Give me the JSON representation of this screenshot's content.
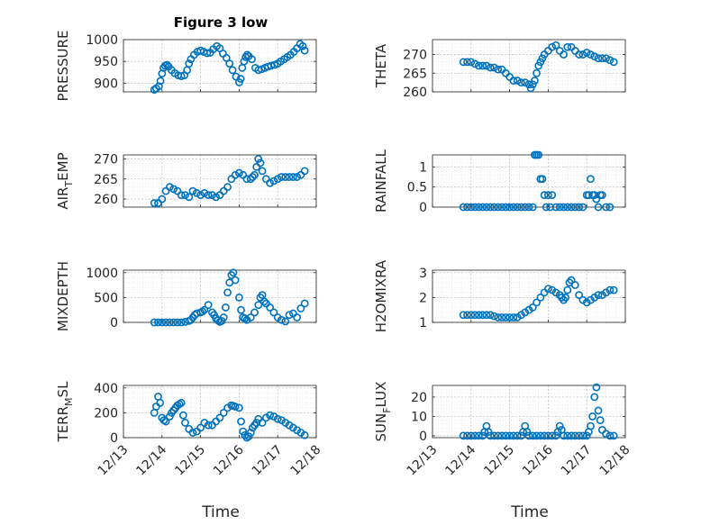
{
  "figure": {
    "title": "Figure 3 low",
    "xlabel": "Time",
    "x_ticks": [
      "12/13",
      "12/14",
      "12/15",
      "12/16",
      "12/17",
      "12/18"
    ]
  },
  "chart_data": [
    {
      "type": "scatter",
      "ylabel": "PRESSURE",
      "ylabel_sub": "",
      "ylim": [
        880,
        1000
      ],
      "yticks": [
        900,
        950,
        1000
      ],
      "marker_color": "#0072BD",
      "x": [
        13.8,
        13.85,
        13.92,
        13.96,
        14.0,
        14.04,
        14.08,
        14.13,
        14.17,
        14.25,
        14.33,
        14.42,
        14.5,
        14.58,
        14.65,
        14.7,
        14.75,
        14.83,
        14.92,
        15.0,
        15.08,
        15.17,
        15.25,
        15.33,
        15.42,
        15.5,
        15.58,
        15.67,
        15.75,
        15.83,
        15.92,
        16.0,
        16.04,
        16.08,
        16.13,
        16.17,
        16.21,
        16.25,
        16.33,
        16.42,
        16.5,
        16.58,
        16.67,
        16.75,
        16.83,
        16.92,
        17.0,
        17.08,
        17.17,
        17.25,
        17.33,
        17.42,
        17.5,
        17.58,
        17.65,
        17.7
      ],
      "y": [
        885,
        888,
        893,
        905,
        922,
        935,
        940,
        942,
        938,
        930,
        923,
        918,
        916,
        918,
        930,
        945,
        955,
        965,
        972,
        975,
        972,
        969,
        970,
        978,
        985,
        980,
        968,
        958,
        945,
        930,
        915,
        902,
        910,
        935,
        950,
        960,
        965,
        962,
        955,
        935,
        930,
        932,
        935,
        938,
        940,
        942,
        945,
        950,
        955,
        960,
        965,
        972,
        980,
        990,
        985,
        975
      ]
    },
    {
      "type": "scatter",
      "ylabel": "THETA",
      "ylabel_sub": "",
      "ylim": [
        260,
        274
      ],
      "yticks": [
        260,
        265,
        270
      ],
      "marker_color": "#0072BD",
      "x": [
        13.8,
        13.9,
        14.0,
        14.1,
        14.2,
        14.3,
        14.4,
        14.5,
        14.6,
        14.7,
        14.8,
        14.9,
        15.0,
        15.1,
        15.2,
        15.3,
        15.4,
        15.5,
        15.55,
        15.6,
        15.65,
        15.7,
        15.75,
        15.8,
        15.85,
        15.9,
        16.0,
        16.1,
        16.2,
        16.3,
        16.4,
        16.5,
        16.6,
        16.7,
        16.8,
        16.9,
        17.0,
        17.1,
        17.2,
        17.3,
        17.4,
        17.5,
        17.6,
        17.7
      ],
      "y": [
        268,
        268,
        268,
        267.5,
        267,
        267,
        267,
        266.5,
        266.5,
        266,
        266,
        265,
        264,
        263,
        263,
        262.5,
        262.5,
        262,
        261,
        262,
        263,
        265,
        267,
        268,
        269,
        270,
        271,
        272,
        272.5,
        271,
        270,
        272,
        272,
        271,
        270,
        270,
        270.5,
        270,
        269.5,
        269,
        269,
        269,
        268.5,
        268
      ]
    },
    {
      "type": "scatter",
      "ylabel": "AIR",
      "ylabel_sub": "T",
      "ylabel_suffix": "EMP",
      "ylim": [
        258,
        271
      ],
      "yticks": [
        260,
        265,
        270
      ],
      "marker_color": "#0072BD",
      "x": [
        13.8,
        13.9,
        14.0,
        14.1,
        14.2,
        14.3,
        14.4,
        14.5,
        14.6,
        14.7,
        14.8,
        14.9,
        15.0,
        15.1,
        15.2,
        15.3,
        15.4,
        15.5,
        15.6,
        15.7,
        15.8,
        15.9,
        16.0,
        16.1,
        16.2,
        16.3,
        16.35,
        16.4,
        16.45,
        16.5,
        16.55,
        16.6,
        16.7,
        16.8,
        16.9,
        17.0,
        17.1,
        17.2,
        17.3,
        17.4,
        17.5,
        17.6,
        17.7
      ],
      "y": [
        259,
        259,
        260,
        262,
        263,
        262.5,
        262,
        261,
        261,
        260.5,
        262,
        261.5,
        261,
        261.5,
        261,
        261,
        260.5,
        261,
        262,
        263,
        265,
        266,
        266.5,
        266,
        265,
        265,
        265.5,
        266,
        268,
        270,
        269,
        267,
        265,
        264,
        264.5,
        265,
        265.5,
        265.5,
        265.5,
        265.5,
        265.5,
        266,
        267
      ]
    },
    {
      "type": "scatter",
      "ylabel": "RAINFALL",
      "ylabel_sub": "",
      "ylim": [
        0,
        1.3
      ],
      "yticks": [
        0,
        0.5,
        1
      ],
      "marker_color": "#0072BD",
      "x": [
        13.8,
        13.9,
        14.0,
        14.1,
        14.2,
        14.3,
        14.4,
        14.5,
        14.6,
        14.7,
        14.8,
        14.9,
        15.0,
        15.1,
        15.2,
        15.3,
        15.4,
        15.5,
        15.6,
        15.65,
        15.7,
        15.75,
        15.8,
        15.85,
        15.9,
        15.95,
        16.0,
        16.05,
        16.1,
        16.2,
        16.3,
        16.4,
        16.5,
        16.6,
        16.7,
        16.8,
        16.9,
        17.0,
        17.05,
        17.1,
        17.15,
        17.2,
        17.25,
        17.3,
        17.35,
        17.4,
        17.5,
        17.6
      ],
      "y": [
        0,
        0,
        0,
        0,
        0,
        0,
        0,
        0,
        0,
        0,
        0,
        0,
        0,
        0,
        0,
        0,
        0,
        0,
        0,
        1.3,
        1.3,
        1.3,
        0.7,
        0.7,
        0.3,
        0,
        0.3,
        0,
        0.3,
        0,
        0,
        0,
        0,
        0,
        0,
        0,
        0,
        0.3,
        0.3,
        0.7,
        0.3,
        0.3,
        0.2,
        0,
        0.3,
        0.3,
        0,
        0
      ]
    },
    {
      "type": "scatter",
      "ylabel": "MIXDEPTH",
      "ylabel_sub": "",
      "ylim": [
        0,
        1050
      ],
      "yticks": [
        0,
        500,
        1000
      ],
      "marker_color": "#0072BD",
      "x": [
        13.8,
        13.9,
        14.0,
        14.1,
        14.2,
        14.3,
        14.4,
        14.5,
        14.6,
        14.7,
        14.75,
        14.8,
        14.85,
        14.9,
        15.0,
        15.05,
        15.1,
        15.2,
        15.3,
        15.35,
        15.4,
        15.45,
        15.5,
        15.55,
        15.6,
        15.65,
        15.7,
        15.75,
        15.8,
        15.85,
        15.9,
        16.0,
        16.05,
        16.1,
        16.15,
        16.2,
        16.3,
        16.4,
        16.5,
        16.55,
        16.6,
        16.65,
        16.7,
        16.8,
        16.9,
        17.0,
        17.1,
        17.2,
        17.3,
        17.4,
        17.5,
        17.6,
        17.7
      ],
      "y": [
        0,
        0,
        0,
        0,
        0,
        0,
        0,
        0,
        10,
        30,
        50,
        100,
        150,
        180,
        200,
        220,
        250,
        350,
        200,
        150,
        80,
        40,
        10,
        30,
        100,
        300,
        600,
        800,
        950,
        1000,
        850,
        500,
        250,
        100,
        80,
        50,
        100,
        200,
        350,
        500,
        550,
        420,
        380,
        300,
        200,
        100,
        50,
        20,
        150,
        180,
        100,
        280,
        380
      ]
    },
    {
      "type": "scatter",
      "ylabel": "H2OMIXRA",
      "ylabel_sub": "",
      "ylim": [
        1,
        3.1
      ],
      "yticks": [
        1,
        2,
        3
      ],
      "marker_color": "#0072BD",
      "x": [
        13.8,
        13.9,
        14.0,
        14.1,
        14.2,
        14.3,
        14.4,
        14.5,
        14.6,
        14.7,
        14.8,
        14.9,
        15.0,
        15.1,
        15.2,
        15.3,
        15.4,
        15.5,
        15.6,
        15.7,
        15.8,
        15.9,
        16.0,
        16.1,
        16.2,
        16.3,
        16.35,
        16.4,
        16.45,
        16.5,
        16.55,
        16.6,
        16.7,
        16.8,
        16.9,
        17.0,
        17.1,
        17.2,
        17.3,
        17.4,
        17.5,
        17.6,
        17.7
      ],
      "y": [
        1.3,
        1.3,
        1.3,
        1.3,
        1.3,
        1.3,
        1.3,
        1.3,
        1.25,
        1.2,
        1.2,
        1.2,
        1.2,
        1.2,
        1.2,
        1.3,
        1.4,
        1.5,
        1.6,
        1.8,
        2.0,
        2.2,
        2.35,
        2.3,
        2.2,
        2.1,
        2.0,
        1.9,
        2.0,
        2.3,
        2.6,
        2.7,
        2.5,
        2.1,
        1.9,
        1.8,
        1.9,
        2.0,
        2.1,
        2.1,
        2.2,
        2.3,
        2.3
      ]
    },
    {
      "type": "scatter",
      "ylabel": "TERR",
      "ylabel_sub": "M",
      "ylabel_suffix": "SL",
      "ylim": [
        0,
        420
      ],
      "yticks": [
        0,
        200,
        400
      ],
      "marker_color": "#0072BD",
      "x": [
        13.8,
        13.85,
        13.9,
        13.95,
        14.0,
        14.05,
        14.1,
        14.2,
        14.25,
        14.3,
        14.35,
        14.4,
        14.45,
        14.5,
        14.55,
        14.6,
        14.7,
        14.8,
        14.9,
        15.0,
        15.1,
        15.2,
        15.3,
        15.4,
        15.5,
        15.6,
        15.7,
        15.8,
        15.85,
        15.9,
        16.0,
        16.05,
        16.1,
        16.15,
        16.2,
        16.25,
        16.3,
        16.35,
        16.4,
        16.45,
        16.5,
        16.6,
        16.7,
        16.8,
        16.9,
        17.0,
        17.1,
        17.2,
        17.3,
        17.4,
        17.5,
        17.6,
        17.7
      ],
      "y": [
        200,
        250,
        330,
        280,
        160,
        140,
        130,
        170,
        200,
        220,
        240,
        260,
        270,
        280,
        180,
        120,
        70,
        40,
        50,
        80,
        120,
        100,
        100,
        130,
        160,
        200,
        240,
        260,
        255,
        250,
        240,
        130,
        50,
        20,
        0,
        10,
        40,
        80,
        100,
        120,
        150,
        120,
        160,
        180,
        170,
        150,
        140,
        120,
        100,
        80,
        60,
        40,
        20
      ]
    },
    {
      "type": "scatter",
      "ylabel": "SUN",
      "ylabel_sub": "F",
      "ylabel_suffix": "LUX",
      "ylim": [
        -1,
        26
      ],
      "yticks": [
        0,
        10,
        20
      ],
      "marker_color": "#0072BD",
      "x": [
        13.8,
        13.9,
        14.0,
        14.1,
        14.2,
        14.3,
        14.35,
        14.4,
        14.45,
        14.5,
        14.6,
        14.7,
        14.8,
        14.9,
        15.0,
        15.1,
        15.2,
        15.3,
        15.35,
        15.4,
        15.45,
        15.5,
        15.6,
        15.7,
        15.8,
        15.9,
        16.0,
        16.1,
        16.2,
        16.25,
        16.3,
        16.35,
        16.4,
        16.5,
        16.6,
        16.7,
        16.8,
        16.9,
        17.0,
        17.05,
        17.1,
        17.15,
        17.2,
        17.25,
        17.3,
        17.35,
        17.4,
        17.5,
        17.6,
        17.7
      ],
      "y": [
        0,
        0,
        0,
        0,
        0,
        0,
        2,
        5,
        2,
        0,
        0,
        0,
        0,
        0,
        0,
        0,
        0,
        0,
        2,
        5,
        2,
        0,
        0,
        0,
        0,
        0,
        0,
        0,
        0,
        2,
        5,
        3,
        0,
        0,
        0,
        0,
        0,
        0,
        0,
        2,
        5,
        10,
        20,
        25,
        13,
        8,
        3,
        1,
        0,
        0
      ]
    }
  ]
}
